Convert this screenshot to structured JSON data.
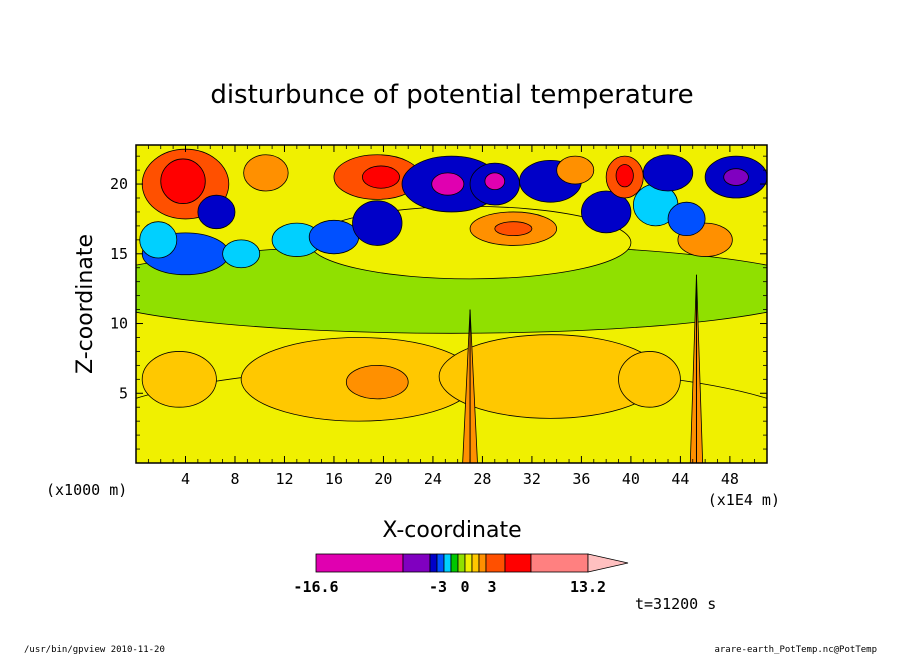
{
  "chart_data": {
    "type": "heatmap",
    "title": "disturbunce of potential temperature",
    "xlabel": "X-coordinate",
    "ylabel": "Z-coordinate",
    "x_unit": "(x1E4 m)",
    "y_unit": "(x1000 m)",
    "xlim": [
      0,
      51
    ],
    "ylim": [
      0,
      22.8
    ],
    "x_ticks": [
      "4",
      "8",
      "12",
      "16",
      "20",
      "24",
      "28",
      "32",
      "36",
      "40",
      "44",
      "48"
    ],
    "x_tick_values": [
      4,
      8,
      12,
      16,
      20,
      24,
      28,
      32,
      36,
      40,
      44,
      48
    ],
    "y_ticks": [
      "5",
      "10",
      "15",
      "20"
    ],
    "y_tick_values": [
      5,
      10,
      15,
      20
    ],
    "colorbar": {
      "labels": [
        "-16.6",
        "-3",
        "0",
        "3",
        "13.2"
      ],
      "label_values": [
        -16.6,
        -3,
        0,
        3,
        13.2
      ],
      "colors": [
        "#e000b0",
        "#8000c0",
        "#0000c8",
        "#0050ff",
        "#00d0ff",
        "#00c800",
        "#90e000",
        "#f0f000",
        "#ffc800",
        "#ff9000",
        "#ff5000",
        "#ff0000",
        "#ff8080",
        "#ffc0c0"
      ]
    },
    "time_label": "t=31200 s",
    "regions": [
      {
        "x": 25.5,
        "y": 2.0,
        "rx": 30,
        "ry": 5,
        "level": 7
      },
      {
        "x": 25.5,
        "y": 12.5,
        "rx": 30,
        "ry": 3.2,
        "level": 6
      },
      {
        "x": 27.0,
        "y": 15.8,
        "rx": 13,
        "ry": 2.6,
        "level": 7
      },
      {
        "x": 18.0,
        "y": 6.0,
        "rx": 9.5,
        "ry": 3.0,
        "level": 8
      },
      {
        "x": 33.5,
        "y": 6.2,
        "rx": 9.0,
        "ry": 3.0,
        "level": 8
      },
      {
        "x": 19.5,
        "y": 5.8,
        "rx": 2.5,
        "ry": 1.2,
        "level": 9
      },
      {
        "x": 3.5,
        "y": 6.0,
        "rx": 3.0,
        "ry": 2.0,
        "level": 8
      },
      {
        "x": 41.5,
        "y": 6.0,
        "rx": 2.5,
        "ry": 2.0,
        "level": 8
      },
      {
        "x": 4.0,
        "y": 20.0,
        "rx": 3.5,
        "ry": 2.5,
        "level": 10
      },
      {
        "x": 3.8,
        "y": 20.2,
        "rx": 1.8,
        "ry": 1.6,
        "level": 11
      },
      {
        "x": 4.0,
        "y": 15.0,
        "rx": 3.5,
        "ry": 1.5,
        "level": 3
      },
      {
        "x": 1.8,
        "y": 16.0,
        "rx": 1.5,
        "ry": 1.3,
        "level": 4
      },
      {
        "x": 10.5,
        "y": 20.8,
        "rx": 1.8,
        "ry": 1.3,
        "level": 9
      },
      {
        "x": 13.0,
        "y": 16.0,
        "rx": 2.0,
        "ry": 1.2,
        "level": 4
      },
      {
        "x": 16.0,
        "y": 16.2,
        "rx": 2.0,
        "ry": 1.2,
        "level": 3
      },
      {
        "x": 19.5,
        "y": 20.5,
        "rx": 3.5,
        "ry": 1.6,
        "level": 10
      },
      {
        "x": 19.8,
        "y": 20.5,
        "rx": 1.5,
        "ry": 0.8,
        "level": 11
      },
      {
        "x": 19.5,
        "y": 17.2,
        "rx": 2.0,
        "ry": 1.6,
        "level": 2
      },
      {
        "x": 25.5,
        "y": 20.0,
        "rx": 4.0,
        "ry": 2.0,
        "level": 2
      },
      {
        "x": 25.2,
        "y": 20.0,
        "rx": 1.3,
        "ry": 0.8,
        "level": 0
      },
      {
        "x": 29.0,
        "y": 20.0,
        "rx": 2.0,
        "ry": 1.5,
        "level": 2
      },
      {
        "x": 29.0,
        "y": 20.2,
        "rx": 0.8,
        "ry": 0.6,
        "level": 0
      },
      {
        "x": 30.5,
        "y": 16.8,
        "rx": 3.5,
        "ry": 1.2,
        "level": 9
      },
      {
        "x": 30.5,
        "y": 16.8,
        "rx": 1.5,
        "ry": 0.5,
        "level": 10
      },
      {
        "x": 33.5,
        "y": 20.2,
        "rx": 2.5,
        "ry": 1.5,
        "level": 2
      },
      {
        "x": 35.5,
        "y": 21.0,
        "rx": 1.5,
        "ry": 1.0,
        "level": 9
      },
      {
        "x": 38.0,
        "y": 18.0,
        "rx": 2.0,
        "ry": 1.5,
        "level": 2
      },
      {
        "x": 39.5,
        "y": 20.5,
        "rx": 1.5,
        "ry": 1.5,
        "level": 10
      },
      {
        "x": 39.5,
        "y": 20.6,
        "rx": 0.7,
        "ry": 0.8,
        "level": 11
      },
      {
        "x": 42.0,
        "y": 18.5,
        "rx": 1.8,
        "ry": 1.5,
        "level": 4
      },
      {
        "x": 43.0,
        "y": 20.8,
        "rx": 2.0,
        "ry": 1.3,
        "level": 2
      },
      {
        "x": 46.0,
        "y": 16.0,
        "rx": 2.2,
        "ry": 1.2,
        "level": 9
      },
      {
        "x": 48.5,
        "y": 20.5,
        "rx": 2.5,
        "ry": 1.5,
        "level": 2
      },
      {
        "x": 48.5,
        "y": 20.5,
        "rx": 1.0,
        "ry": 0.6,
        "level": 1
      },
      {
        "x": 6.5,
        "y": 18.0,
        "rx": 1.5,
        "ry": 1.2,
        "level": 2
      },
      {
        "x": 8.5,
        "y": 15.0,
        "rx": 1.5,
        "ry": 1.0,
        "level": 4
      },
      {
        "x": 44.5,
        "y": 17.5,
        "rx": 1.5,
        "ry": 1.2,
        "level": 3
      }
    ],
    "spikes": [
      {
        "x": 27.0,
        "top": 11.0,
        "half_width": 0.6
      },
      {
        "x": 45.3,
        "top": 13.5,
        "half_width": 0.5
      }
    ]
  },
  "footer": {
    "left": "/usr/bin/gpview 2010-11-20",
    "right": "arare-earth_PotTemp.nc@PotTemp"
  }
}
